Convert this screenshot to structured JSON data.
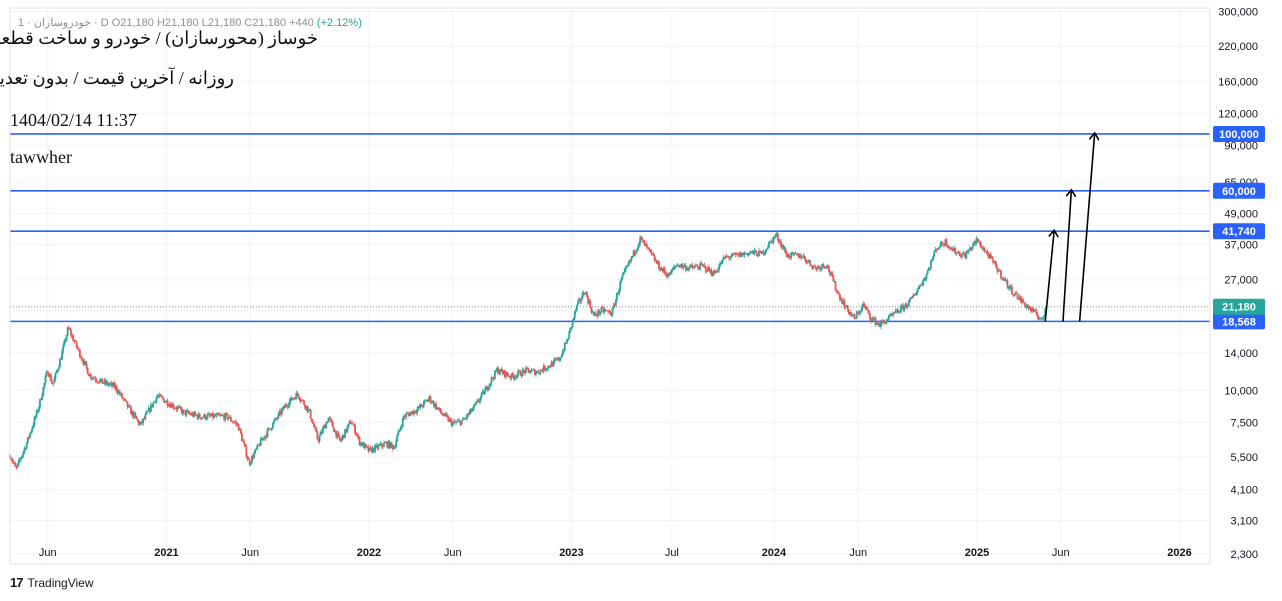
{
  "header": {
    "ohlc_text": "1 · خودروسازان · D  O21,180  H21,180  L21,180  C21,180  +440",
    "ohlc_change": "(+2.12%)",
    "title": "خوساز (محورسازان) / خودرو و ساخت قطعات",
    "subtitle": "روزانه / آخرین قیمت / بدون تعدیل",
    "timestamp": "1404/02/14 11:37",
    "author": "tawwher"
  },
  "brand": {
    "name": "TradingView",
    "logo_glyph": "17"
  },
  "colors": {
    "up": "#26a69a",
    "down": "#ef5350",
    "level_line": "#2962ff",
    "current_price": "#26a69a",
    "grid": "#f0f3fa",
    "axis_text": "#131722"
  },
  "chart_data": {
    "type": "candlestick",
    "y_scale": "log",
    "ylim": [
      2100,
      310000
    ],
    "xlim": [
      "2020-03-25",
      "2026-02-25"
    ],
    "y_ticks": [
      {
        "value": 300000,
        "label": "300,000"
      },
      {
        "value": 220000,
        "label": "220,000"
      },
      {
        "value": 160000,
        "label": "160,000"
      },
      {
        "value": 120000,
        "label": "120,000"
      },
      {
        "value": 90000,
        "label": "90,000"
      },
      {
        "value": 65000,
        "label": "65,000"
      },
      {
        "value": 49000,
        "label": "49,000"
      },
      {
        "value": 37000,
        "label": "37,000"
      },
      {
        "value": 27000,
        "label": "27,000"
      },
      {
        "value": 14000,
        "label": "14,000"
      },
      {
        "value": 10000,
        "label": "10,000"
      },
      {
        "value": 7500,
        "label": "7,500"
      },
      {
        "value": 5500,
        "label": "5,500"
      },
      {
        "value": 4100,
        "label": "4,100"
      },
      {
        "value": 3100,
        "label": "3,100"
      },
      {
        "value": 2300,
        "label": "2,300"
      }
    ],
    "x_ticks": [
      {
        "date": "2020-06-01",
        "label": "Jun",
        "bold": false
      },
      {
        "date": "2021-01-01",
        "label": "2021",
        "bold": true
      },
      {
        "date": "2021-06-01",
        "label": "Jun",
        "bold": false
      },
      {
        "date": "2022-01-01",
        "label": "2022",
        "bold": true
      },
      {
        "date": "2022-06-01",
        "label": "Jun",
        "bold": false
      },
      {
        "date": "2023-01-01",
        "label": "2023",
        "bold": true
      },
      {
        "date": "2023-07-01",
        "label": "Jul",
        "bold": false
      },
      {
        "date": "2024-01-01",
        "label": "2024",
        "bold": true
      },
      {
        "date": "2024-06-01",
        "label": "Jun",
        "bold": false
      },
      {
        "date": "2025-01-01",
        "label": "2025",
        "bold": true
      },
      {
        "date": "2025-06-01",
        "label": "Jun",
        "bold": false
      },
      {
        "date": "2026-01-01",
        "label": "2026",
        "bold": true
      }
    ],
    "price_path": [
      [
        "2020-03-25",
        5600
      ],
      [
        "2020-04-05",
        4900
      ],
      [
        "2020-04-25",
        6300
      ],
      [
        "2020-05-15",
        8500
      ],
      [
        "2020-06-01",
        12000
      ],
      [
        "2020-06-10",
        10500
      ],
      [
        "2020-06-25",
        13500
      ],
      [
        "2020-07-08",
        17500
      ],
      [
        "2020-07-25",
        14500
      ],
      [
        "2020-08-15",
        11500
      ],
      [
        "2020-09-05",
        10800
      ],
      [
        "2020-10-01",
        10300
      ],
      [
        "2020-10-25",
        8500
      ],
      [
        "2020-11-15",
        7300
      ],
      [
        "2020-11-30",
        8300
      ],
      [
        "2020-12-15",
        9500
      ],
      [
        "2021-01-10",
        8800
      ],
      [
        "2021-02-01",
        8200
      ],
      [
        "2021-03-01",
        7900
      ],
      [
        "2021-04-20",
        7900
      ],
      [
        "2021-05-10",
        7300
      ],
      [
        "2021-05-30",
        5200
      ],
      [
        "2021-06-20",
        6300
      ],
      [
        "2021-07-10",
        7300
      ],
      [
        "2021-08-05",
        8800
      ],
      [
        "2021-08-25",
        9700
      ],
      [
        "2021-09-15",
        8300
      ],
      [
        "2021-10-01",
        6400
      ],
      [
        "2021-10-20",
        7800
      ],
      [
        "2021-11-10",
        6300
      ],
      [
        "2021-11-30",
        7600
      ],
      [
        "2021-12-15",
        6300
      ],
      [
        "2022-01-01",
        5800
      ],
      [
        "2022-02-01",
        6200
      ],
      [
        "2022-02-15",
        6000
      ],
      [
        "2022-03-05",
        7900
      ],
      [
        "2022-04-01",
        8500
      ],
      [
        "2022-04-20",
        9300
      ],
      [
        "2022-05-10",
        8200
      ],
      [
        "2022-06-01",
        7400
      ],
      [
        "2022-06-20",
        7600
      ],
      [
        "2022-07-10",
        8600
      ],
      [
        "2022-08-01",
        10200
      ],
      [
        "2022-08-20",
        12000
      ],
      [
        "2022-09-15",
        11300
      ],
      [
        "2022-10-10",
        11900
      ],
      [
        "2022-11-01",
        11800
      ],
      [
        "2022-11-25",
        12600
      ],
      [
        "2022-12-10",
        13200
      ],
      [
        "2022-12-25",
        15800
      ],
      [
        "2023-01-10",
        21000
      ],
      [
        "2023-01-25",
        24500
      ],
      [
        "2023-02-10",
        19500
      ],
      [
        "2023-02-25",
        20500
      ],
      [
        "2023-03-15",
        20000
      ],
      [
        "2023-04-01",
        27000
      ],
      [
        "2023-04-20",
        33000
      ],
      [
        "2023-05-05",
        39000
      ],
      [
        "2023-05-20",
        35000
      ],
      [
        "2023-06-10",
        30000
      ],
      [
        "2023-06-25",
        28000
      ],
      [
        "2023-07-10",
        31000
      ],
      [
        "2023-08-01",
        30000
      ],
      [
        "2023-08-25",
        30500
      ],
      [
        "2023-09-15",
        28500
      ],
      [
        "2023-10-05",
        33000
      ],
      [
        "2023-10-25",
        33500
      ],
      [
        "2023-11-20",
        34500
      ],
      [
        "2023-12-10",
        34000
      ],
      [
        "2024-01-05",
        40500
      ],
      [
        "2024-01-25",
        33500
      ],
      [
        "2024-02-20",
        33500
      ],
      [
        "2024-03-15",
        30000
      ],
      [
        "2024-04-05",
        31000
      ],
      [
        "2024-04-25",
        24000
      ],
      [
        "2024-05-10",
        21000
      ],
      [
        "2024-05-25",
        19000
      ],
      [
        "2024-06-10",
        21500
      ],
      [
        "2024-06-25",
        19000
      ],
      [
        "2024-07-10",
        18000
      ],
      [
        "2024-08-01",
        19500
      ],
      [
        "2024-09-01",
        22000
      ],
      [
        "2024-10-01",
        28000
      ],
      [
        "2024-10-20",
        36000
      ],
      [
        "2024-11-05",
        38000
      ],
      [
        "2024-11-20",
        35000
      ],
      [
        "2024-12-10",
        33500
      ],
      [
        "2025-01-01",
        38500
      ],
      [
        "2025-01-20",
        34000
      ],
      [
        "2025-02-10",
        29000
      ],
      [
        "2025-03-01",
        25000
      ],
      [
        "2025-03-25",
        22000
      ],
      [
        "2025-04-15",
        20000
      ],
      [
        "2025-05-01",
        18700
      ],
      [
        "2025-05-04",
        21180
      ]
    ],
    "horizontal_levels": [
      {
        "value": 100000,
        "label": "100,000"
      },
      {
        "value": 60000,
        "label": "60,000"
      },
      {
        "value": 41740,
        "label": "41,740"
      },
      {
        "value": 18568,
        "label": "18,568"
      }
    ],
    "current_price": {
      "value": 21180,
      "label": "21,180"
    },
    "annotations": [
      {
        "type": "arrow",
        "from": [
          "2025-05-04",
          18568
        ],
        "to": [
          "2025-05-20",
          41740
        ]
      },
      {
        "type": "arrow",
        "from": [
          "2025-06-05",
          18568
        ],
        "to": [
          "2025-06-20",
          60000
        ]
      },
      {
        "type": "arrow",
        "from": [
          "2025-07-05",
          18568
        ],
        "to": [
          "2025-08-01",
          100000
        ]
      }
    ]
  }
}
